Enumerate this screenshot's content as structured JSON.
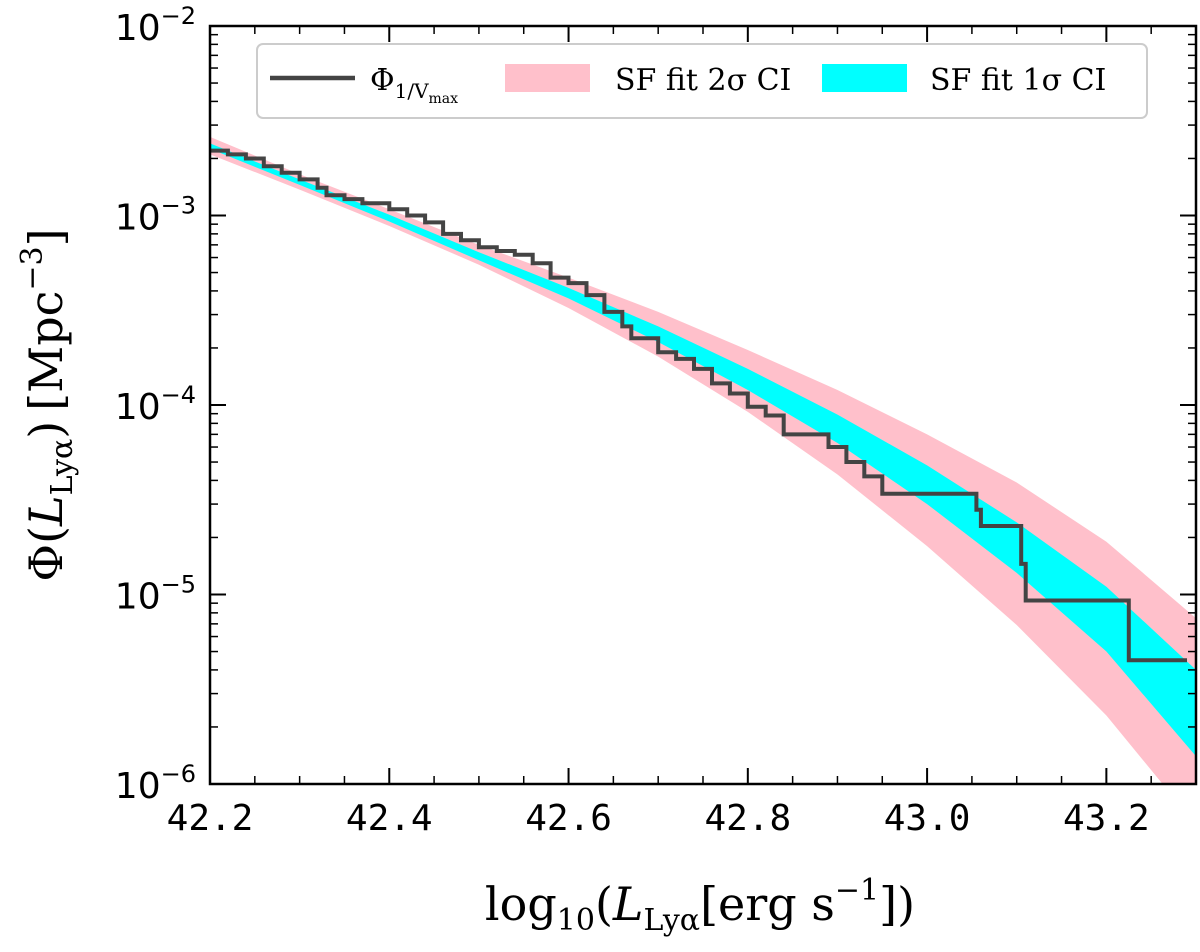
{
  "chart_data": {
    "type": "line",
    "xlabel": {
      "base": "log",
      "sub": "10",
      "open": "(",
      "var": "L",
      "var_sub": "Lyα",
      "unit_open": "[",
      "unit": "erg s",
      "unit_exp": "−1",
      "close": "])"
    },
    "ylabel": {
      "base": "Φ(",
      "var": "L",
      "var_sub": "Lyα",
      "close": ")",
      "unit_open": "[",
      "unit": "Mpc",
      "unit_exp": "−3",
      "unit_close": "]"
    },
    "xlim": [
      42.2,
      43.3
    ],
    "ylim_log10": [
      -6,
      -2
    ],
    "yscale": "log",
    "xticks": [
      {
        "value": 42.2,
        "label": "42.2"
      },
      {
        "value": 42.4,
        "label": "42.4"
      },
      {
        "value": 42.6,
        "label": "42.6"
      },
      {
        "value": 42.8,
        "label": "42.8"
      },
      {
        "value": 43.0,
        "label": "43.0"
      },
      {
        "value": 43.2,
        "label": "43.2"
      }
    ],
    "yticks": [
      {
        "log10": -6,
        "base": "10",
        "exp": "−6"
      },
      {
        "log10": -5,
        "base": "10",
        "exp": "−5"
      },
      {
        "log10": -4,
        "base": "10",
        "exp": "−4"
      },
      {
        "log10": -3,
        "base": "10",
        "exp": "−3"
      },
      {
        "log10": -2,
        "base": "10",
        "exp": "−2"
      }
    ],
    "legend": {
      "placement": "top",
      "entries": [
        {
          "key": "vmax",
          "label_base": "Φ",
          "label_sub": "1/V",
          "label_subsub": "max",
          "color": "#444444"
        },
        {
          "key": "ci2",
          "label": "SF fit 2σ CI",
          "color": "#ffc0cb"
        },
        {
          "key": "ci1",
          "label": "SF fit 1σ CI",
          "color": "#00ffff"
        }
      ]
    },
    "series": [
      {
        "name": "SF fit 2σ CI",
        "kind": "band",
        "color": "#ffc0cb",
        "x": [
          42.2,
          42.3,
          42.4,
          42.5,
          42.6,
          42.7,
          42.8,
          42.9,
          43.0,
          43.1,
          43.2,
          43.3
        ],
        "upper": [
          0.0026,
          0.00165,
          0.00108,
          0.0007,
          0.00047,
          0.00031,
          0.000195,
          0.00012,
          7e-05,
          3.9e-05,
          1.9e-05,
          7.5e-06
        ],
        "lower": [
          0.0021,
          0.00137,
          0.00088,
          0.00055,
          0.000325,
          0.00018,
          9.2e-05,
          4.3e-05,
          1.8e-05,
          6.9e-06,
          2.3e-06,
          6.1e-07
        ]
      },
      {
        "name": "SF fit 1σ CI",
        "kind": "band",
        "color": "#00ffff",
        "x": [
          42.2,
          42.3,
          42.4,
          42.5,
          42.6,
          42.7,
          42.8,
          42.9,
          43.0,
          43.1,
          43.2,
          43.3
        ],
        "upper": [
          0.0024,
          0.00155,
          0.00101,
          0.00064,
          0.000415,
          0.00026,
          0.000155,
          8.9e-05,
          4.8e-05,
          2.4e-05,
          1.1e-05,
          4e-06
        ],
        "lower": [
          0.00225,
          0.00145,
          0.00093,
          0.00058,
          0.000365,
          0.000215,
          0.00012,
          6.3e-05,
          3e-05,
          1.3e-05,
          5e-06,
          1.4e-06
        ]
      },
      {
        "name": "Φ_1/Vmax",
        "kind": "step",
        "color": "#444444",
        "points": [
          [
            42.2,
            0.0022
          ],
          [
            42.22,
            0.0021
          ],
          [
            42.24,
            0.002
          ],
          [
            42.26,
            0.00182
          ],
          [
            42.28,
            0.00168
          ],
          [
            42.3,
            0.00155
          ],
          [
            42.32,
            0.0014
          ],
          [
            42.33,
            0.00128
          ],
          [
            42.35,
            0.00122
          ],
          [
            42.37,
            0.00116
          ],
          [
            42.4,
            0.00108
          ],
          [
            42.42,
            0.001
          ],
          [
            42.44,
            0.00092
          ],
          [
            42.46,
            0.0008
          ],
          [
            42.48,
            0.00074
          ],
          [
            42.5,
            0.00068
          ],
          [
            42.52,
            0.00065
          ],
          [
            42.54,
            0.00062
          ],
          [
            42.56,
            0.00056
          ],
          [
            42.58,
            0.00047
          ],
          [
            42.6,
            0.00044
          ],
          [
            42.62,
            0.00038
          ],
          [
            42.64,
            0.00031
          ],
          [
            42.66,
            0.00026
          ],
          [
            42.67,
            0.000225
          ],
          [
            42.7,
            0.00019
          ],
          [
            42.72,
            0.000175
          ],
          [
            42.74,
            0.000155
          ],
          [
            42.76,
            0.00013
          ],
          [
            42.78,
            0.000115
          ],
          [
            42.8,
            9.8e-05
          ],
          [
            42.82,
            8.8e-05
          ],
          [
            42.84,
            7e-05
          ],
          [
            42.88,
            7e-05
          ],
          [
            42.89,
            6e-05
          ],
          [
            42.91,
            5e-05
          ],
          [
            42.93,
            4.2e-05
          ],
          [
            42.95,
            3.4e-05
          ],
          [
            43.05,
            3.4e-05
          ],
          [
            43.055,
            2.8e-05
          ],
          [
            43.06,
            2.3e-05
          ],
          [
            43.1,
            2.3e-05
          ],
          [
            43.105,
            1.45e-05
          ],
          [
            43.11,
            9.3e-06
          ],
          [
            43.22,
            9.3e-06
          ],
          [
            43.225,
            4.5e-06
          ],
          [
            43.29,
            4.5e-06
          ]
        ]
      }
    ]
  }
}
